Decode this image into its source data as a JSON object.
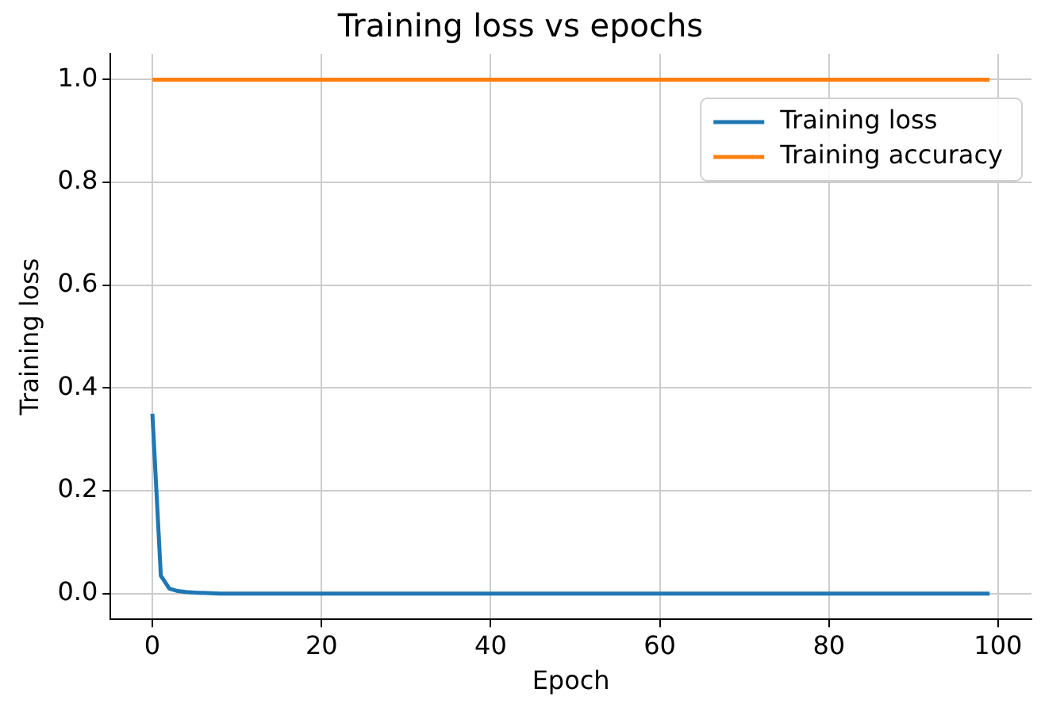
{
  "chart_data": {
    "type": "line",
    "title": "Training loss vs epochs",
    "xlabel": "Epoch",
    "ylabel": "Training loss",
    "xlim": [
      -4.95,
      103.95
    ],
    "xticks": [
      0,
      20,
      40,
      60,
      80,
      100
    ],
    "ylim": [
      -0.05,
      1.05
    ],
    "yticks": [
      {
        "value": 0,
        "label": "0.0"
      },
      0.2,
      0.4,
      0.6,
      0.8,
      {
        "value": 1,
        "label": "1.0"
      }
    ],
    "grid": true,
    "legend": "top right",
    "marker": "none",
    "line_style": "solid",
    "series": [
      {
        "name": "Training loss",
        "color": "#1f77b4",
        "x": [
          0,
          1,
          2,
          3,
          4,
          5,
          8,
          20,
          40,
          60,
          80,
          99
        ],
        "values": [
          0.35,
          0.035,
          0.01,
          0.005,
          0.003,
          0.002,
          0,
          0,
          0,
          0,
          0,
          0
        ]
      },
      {
        "name": "Training accuracy",
        "color": "#ff7f0e",
        "x": [
          0,
          99
        ],
        "values": [
          1.0,
          1.0
        ]
      }
    ]
  }
}
